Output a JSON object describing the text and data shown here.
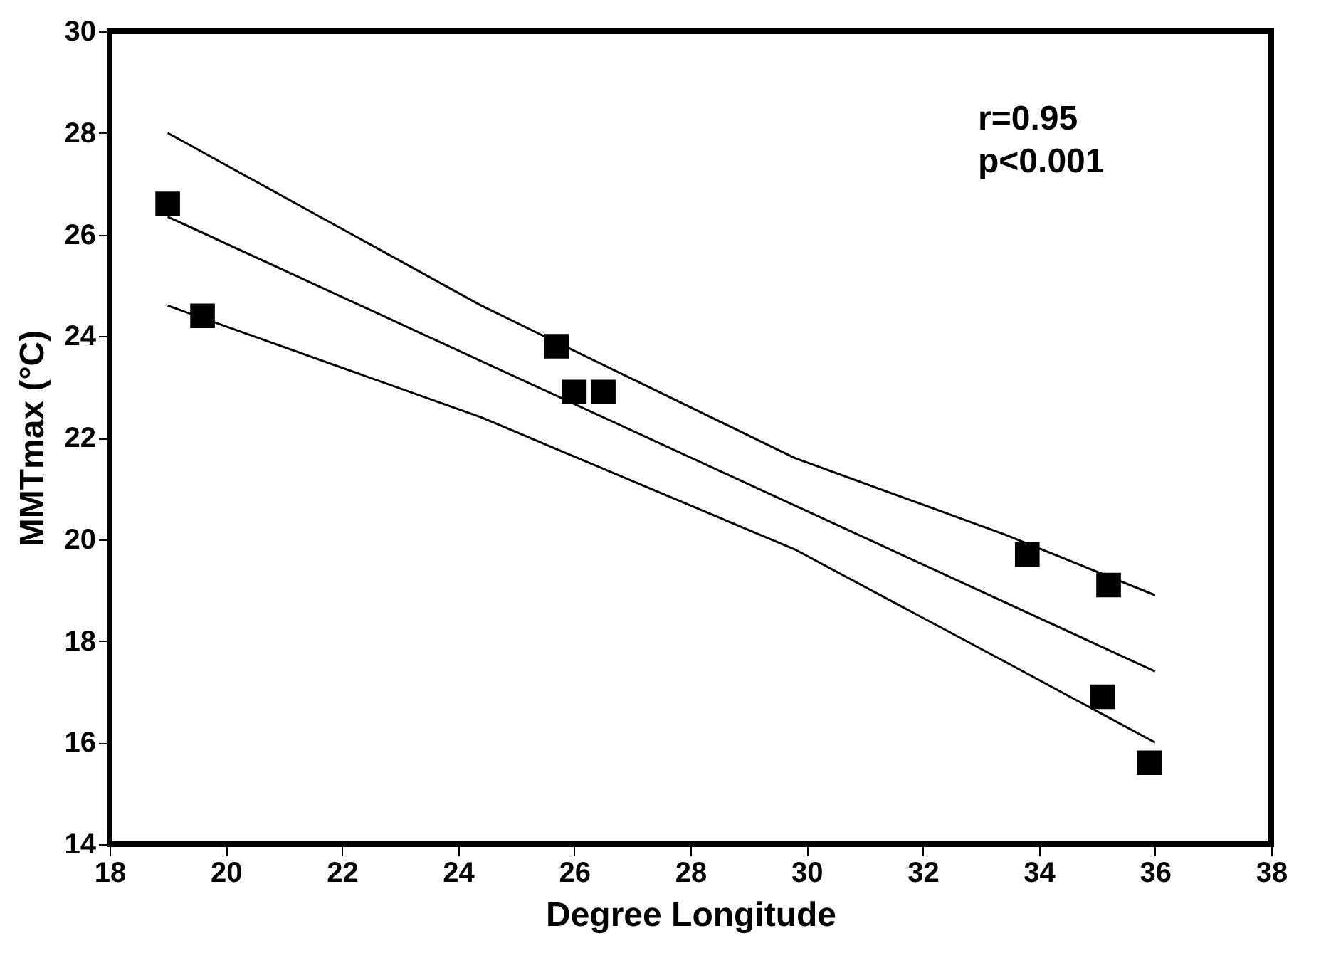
{
  "chart_data": {
    "type": "scatter",
    "xlabel": "Degree Longitude",
    "ylabel": "MMTmax (°C)",
    "xlim": [
      18,
      38
    ],
    "xticks": [
      18,
      20,
      22,
      24,
      26,
      28,
      30,
      32,
      34,
      36,
      38
    ],
    "ylim": [
      14,
      30
    ],
    "yticks": [
      14,
      16,
      18,
      20,
      22,
      24,
      26,
      28,
      30
    ],
    "grid": false,
    "annotations": [
      "r=0.95\np<0.001"
    ],
    "series": [
      {
        "marker": "square",
        "color": "#000000",
        "x": [
          19.0,
          19.6,
          25.7,
          26.0,
          26.5,
          33.8,
          35.2,
          35.1,
          35.9
        ],
        "values": [
          26.6,
          24.4,
          23.8,
          22.9,
          22.9,
          19.7,
          19.1,
          16.9,
          15.6
        ]
      },
      {
        "type": "line",
        "marker": "none",
        "color": "#000000",
        "line_style": "solid",
        "x": [
          19.0,
          36.0
        ],
        "values": [
          26.35,
          17.4
        ]
      },
      {
        "type": "line",
        "marker": "none",
        "color": "#000000",
        "line_style": "solid",
        "x": [
          19.0,
          24.4,
          29.8,
          33.4,
          36.0
        ],
        "values": [
          28.0,
          24.6,
          21.6,
          20.1,
          18.9
        ]
      },
      {
        "type": "line",
        "marker": "none",
        "color": "#000000",
        "line_style": "solid",
        "x": [
          19.0,
          24.4,
          29.8,
          33.4,
          36.0
        ],
        "values": [
          24.6,
          22.4,
          19.8,
          17.6,
          16.0
        ]
      }
    ]
  }
}
